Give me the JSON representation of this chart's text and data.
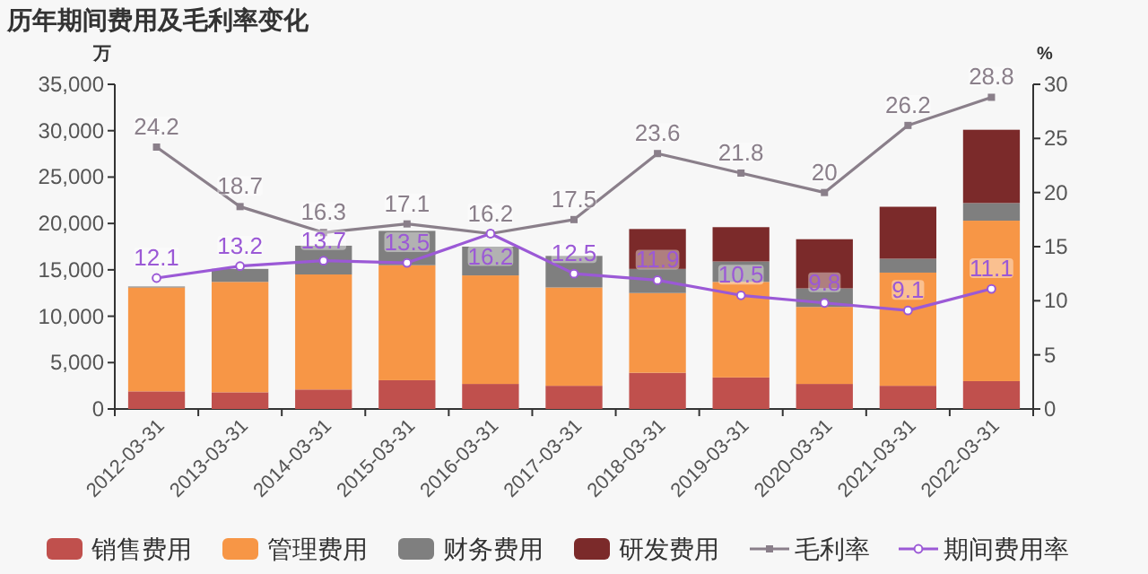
{
  "chart_data": {
    "type": "bar",
    "stacked": true,
    "title": "历年期间费用及毛利率变化",
    "ylabel": "万",
    "y2label": "%",
    "categories": [
      "2012-03-31",
      "2013-03-31",
      "2014-03-31",
      "2015-03-31",
      "2016-03-31",
      "2017-03-31",
      "2018-03-31",
      "2019-03-31",
      "2020-03-31",
      "2021-03-31",
      "2022-03-31"
    ],
    "series": [
      {
        "name": "销售费用",
        "color": "#c0504d",
        "values": [
          1900,
          1800,
          2100,
          3100,
          2700,
          2500,
          3900,
          3400,
          2700,
          2500,
          3000
        ]
      },
      {
        "name": "管理费用",
        "color": "#f79646",
        "values": [
          11200,
          11900,
          12400,
          12400,
          11700,
          10600,
          8600,
          10300,
          8300,
          12200,
          17300
        ]
      },
      {
        "name": "财务费用",
        "color": "#7f7f7f",
        "values": [
          100,
          1400,
          3100,
          3700,
          3100,
          3400,
          2600,
          2200,
          2000,
          1500,
          1900
        ]
      },
      {
        "name": "研发费用",
        "color": "#7b2a2a",
        "values": [
          null,
          null,
          null,
          null,
          null,
          null,
          4300,
          3700,
          5300,
          5600,
          7900
        ]
      },
      {
        "name": "毛利率",
        "type": "line",
        "axis": "y2",
        "marker": "square",
        "color": "#8a7f8a",
        "values": [
          24.2,
          18.7,
          16.3,
          17.1,
          16.2,
          17.5,
          23.6,
          21.8,
          20,
          26.2,
          28.8
        ],
        "value_labels": [
          "24.2",
          "18.7",
          "16.3",
          "17.1",
          "16.2",
          "17.5",
          "23.6",
          "21.8",
          "20",
          "26.2",
          "28.8"
        ]
      },
      {
        "name": "期间费用率",
        "type": "line",
        "axis": "y2",
        "marker": "circle",
        "color": "#9b59d6",
        "values": [
          12.1,
          13.2,
          13.7,
          13.5,
          16.2,
          12.5,
          11.9,
          10.5,
          9.8,
          9.1,
          11.1
        ],
        "value_labels": [
          "12.1",
          "13.2",
          "13.7",
          "13.5",
          "16.2",
          "12.5",
          "11.9",
          "10.5",
          "9.8",
          "9.1",
          "11.1"
        ]
      }
    ],
    "ylim": [
      0,
      35000
    ],
    "yticks": [
      {
        "value": 0,
        "label": "0"
      },
      {
        "value": 5000,
        "label": "5,000"
      },
      {
        "value": 10000,
        "label": "10,000"
      },
      {
        "value": 15000,
        "label": "15,000"
      },
      {
        "value": 20000,
        "label": "20,000"
      },
      {
        "value": 25000,
        "label": "25,000"
      },
      {
        "value": 30000,
        "label": "30,000"
      },
      {
        "value": 35000,
        "label": "35,000"
      }
    ],
    "y2lim": [
      0,
      30
    ],
    "y2ticks": [
      0,
      5,
      10,
      15,
      20,
      25,
      30
    ],
    "legend": "bottom",
    "grid": false
  }
}
